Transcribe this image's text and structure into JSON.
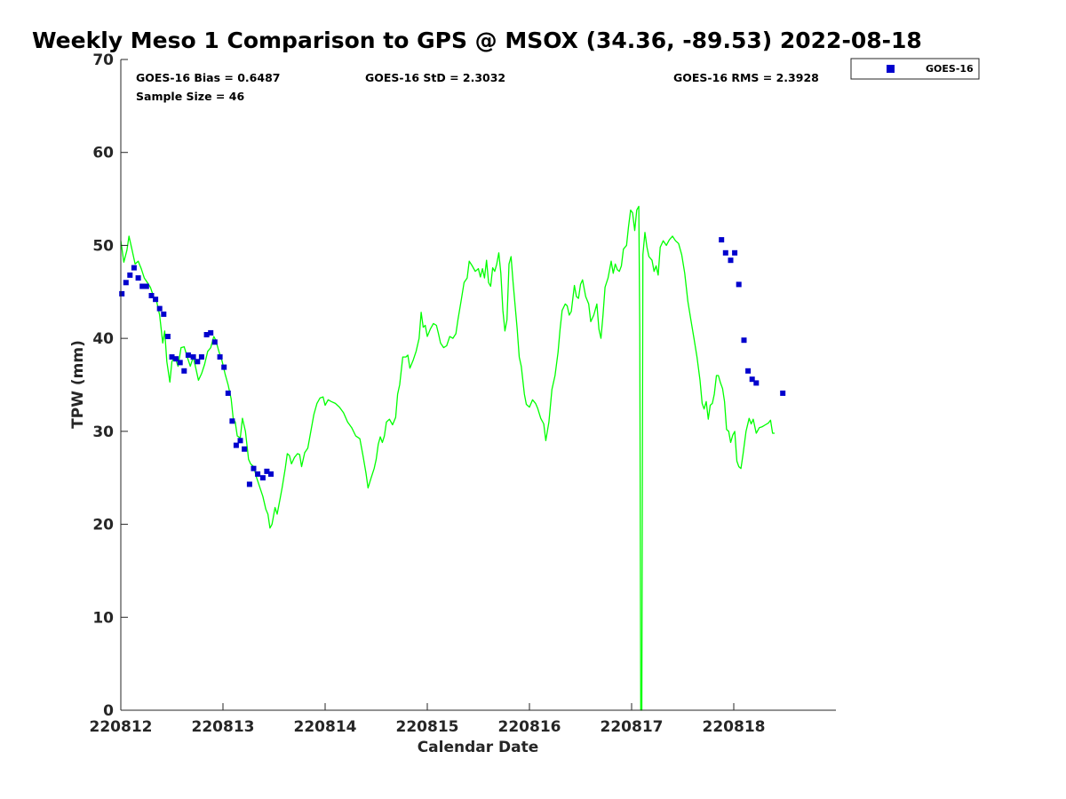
{
  "chart_data": {
    "type": "scatter",
    "title": "Weekly Meso 1 Comparison to GPS @ MSOX (34.36, -89.53) 2022-08-18",
    "xlabel": "Calendar Date",
    "ylabel": "TPW (mm)",
    "xlim": [
      0,
      7
    ],
    "ylim": [
      0,
      70
    ],
    "xticks": [
      0,
      1,
      2,
      3,
      4,
      5,
      6
    ],
    "categories": [
      "220812",
      "220813",
      "220814",
      "220815",
      "220816",
      "220817",
      "220818"
    ],
    "yticks": [
      0,
      10,
      20,
      30,
      40,
      50,
      60,
      70
    ],
    "grid": false,
    "legend": {
      "position": "outside-top-right"
    },
    "stats": {
      "bias": "GOES-16 Bias = 0.6487",
      "std": "GOES-16 StD = 2.3032",
      "rms": "GOES-16 RMS = 2.3928",
      "sample": "Sample Size = 46"
    },
    "series": [
      {
        "name": "GOES-16",
        "kind": "markers",
        "color": "#0000cd",
        "points": [
          [
            0.01,
            44.8
          ],
          [
            0.05,
            46
          ],
          [
            0.09,
            46.8
          ],
          [
            0.13,
            47.6
          ],
          [
            0.17,
            46.5
          ],
          [
            0.21,
            45.6
          ],
          [
            0.25,
            45.6
          ],
          [
            0.3,
            44.6
          ],
          [
            0.34,
            44.2
          ],
          [
            0.38,
            43.2
          ],
          [
            0.42,
            42.6
          ],
          [
            0.46,
            40.2
          ],
          [
            0.5,
            38
          ],
          [
            0.54,
            37.8
          ],
          [
            0.58,
            37.4
          ],
          [
            0.62,
            36.5
          ],
          [
            0.66,
            38.2
          ],
          [
            0.71,
            38
          ],
          [
            0.75,
            37.5
          ],
          [
            0.79,
            38
          ],
          [
            0.84,
            40.4
          ],
          [
            0.88,
            40.6
          ],
          [
            0.92,
            39.6
          ],
          [
            0.97,
            38
          ],
          [
            1.01,
            36.9
          ],
          [
            1.05,
            34.1
          ],
          [
            1.09,
            31.1
          ],
          [
            1.13,
            28.5
          ],
          [
            1.17,
            29
          ],
          [
            1.21,
            28.1
          ],
          [
            1.26,
            24.3
          ],
          [
            1.3,
            26
          ],
          [
            1.34,
            25.4
          ],
          [
            1.39,
            25
          ],
          [
            1.43,
            25.7
          ],
          [
            1.47,
            25.4
          ],
          [
            5.88,
            50.6
          ],
          [
            5.92,
            49.2
          ],
          [
            5.97,
            48.4
          ],
          [
            6.01,
            49.2
          ],
          [
            6.05,
            45.8
          ],
          [
            6.1,
            39.8
          ],
          [
            6.14,
            36.5
          ],
          [
            6.18,
            35.6
          ],
          [
            6.22,
            35.2
          ],
          [
            6.48,
            34.1
          ]
        ]
      },
      {
        "name": "GPS",
        "kind": "line",
        "color": "#00ff00",
        "points": [
          [
            0.0,
            50.5
          ],
          [
            0.03,
            48.2
          ],
          [
            0.06,
            49.5
          ],
          [
            0.08,
            51
          ],
          [
            0.11,
            49.5
          ],
          [
            0.14,
            48
          ],
          [
            0.17,
            48.3
          ],
          [
            0.2,
            47.5
          ],
          [
            0.23,
            46.5
          ],
          [
            0.26,
            46
          ],
          [
            0.29,
            45.5
          ],
          [
            0.32,
            44.5
          ],
          [
            0.35,
            44
          ],
          [
            0.38,
            42.5
          ],
          [
            0.41,
            39.5
          ],
          [
            0.43,
            40.8
          ],
          [
            0.45,
            37.5
          ],
          [
            0.48,
            35.3
          ],
          [
            0.5,
            37.5
          ],
          [
            0.53,
            38
          ],
          [
            0.56,
            37
          ],
          [
            0.59,
            39
          ],
          [
            0.62,
            39.1
          ],
          [
            0.65,
            38
          ],
          [
            0.68,
            37
          ],
          [
            0.71,
            38
          ],
          [
            0.74,
            36.5
          ],
          [
            0.76,
            35.5
          ],
          [
            0.79,
            36.2
          ],
          [
            0.82,
            37.2
          ],
          [
            0.85,
            38.6
          ],
          [
            0.88,
            39
          ],
          [
            0.91,
            40.2
          ],
          [
            0.93,
            39.8
          ],
          [
            0.96,
            38.6
          ],
          [
            0.99,
            37.6
          ],
          [
            1.02,
            36.2
          ],
          [
            1.05,
            35
          ],
          [
            1.08,
            33.5
          ],
          [
            1.1,
            31.4
          ],
          [
            1.12,
            31
          ],
          [
            1.14,
            29.5
          ],
          [
            1.17,
            29.3
          ],
          [
            1.19,
            31.4
          ],
          [
            1.22,
            30
          ],
          [
            1.25,
            27
          ],
          [
            1.27,
            26.5
          ],
          [
            1.3,
            26.2
          ],
          [
            1.33,
            25
          ],
          [
            1.36,
            24
          ],
          [
            1.39,
            23
          ],
          [
            1.42,
            21.6
          ],
          [
            1.44,
            21.1
          ],
          [
            1.46,
            19.6
          ],
          [
            1.48,
            20
          ],
          [
            1.51,
            21.8
          ],
          [
            1.53,
            21.1
          ],
          [
            1.56,
            22.8
          ],
          [
            1.58,
            24
          ],
          [
            1.61,
            26
          ],
          [
            1.63,
            27.6
          ],
          [
            1.65,
            27.4
          ],
          [
            1.67,
            26.5
          ],
          [
            1.7,
            27.2
          ],
          [
            1.73,
            27.6
          ],
          [
            1.75,
            27.5
          ],
          [
            1.77,
            26.2
          ],
          [
            1.8,
            27.7
          ],
          [
            1.83,
            28.2
          ],
          [
            1.86,
            30
          ],
          [
            1.89,
            31.8
          ],
          [
            1.92,
            33
          ],
          [
            1.95,
            33.6
          ],
          [
            1.98,
            33.7
          ],
          [
            2.0,
            32.8
          ],
          [
            2.03,
            33.4
          ],
          [
            2.06,
            33.2
          ],
          [
            2.1,
            33
          ],
          [
            2.14,
            32.6
          ],
          [
            2.18,
            32
          ],
          [
            2.22,
            31
          ],
          [
            2.26,
            30.4
          ],
          [
            2.3,
            29.5
          ],
          [
            2.34,
            29.2
          ],
          [
            2.37,
            27.4
          ],
          [
            2.4,
            25.5
          ],
          [
            2.42,
            23.9
          ],
          [
            2.45,
            25
          ],
          [
            2.48,
            26
          ],
          [
            2.5,
            27
          ],
          [
            2.52,
            28.6
          ],
          [
            2.54,
            29.4
          ],
          [
            2.56,
            28.8
          ],
          [
            2.58,
            29.5
          ],
          [
            2.6,
            31
          ],
          [
            2.63,
            31.3
          ],
          [
            2.66,
            30.7
          ],
          [
            2.69,
            31.5
          ],
          [
            2.71,
            34
          ],
          [
            2.73,
            35
          ],
          [
            2.76,
            38
          ],
          [
            2.79,
            38
          ],
          [
            2.81,
            38.2
          ],
          [
            2.83,
            36.8
          ],
          [
            2.86,
            37.6
          ],
          [
            2.89,
            38.6
          ],
          [
            2.92,
            40
          ],
          [
            2.94,
            42.8
          ],
          [
            2.96,
            41.2
          ],
          [
            2.98,
            41.4
          ],
          [
            3.0,
            40.2
          ],
          [
            3.03,
            41
          ],
          [
            3.06,
            41.6
          ],
          [
            3.09,
            41.4
          ],
          [
            3.11,
            40.5
          ],
          [
            3.13,
            39.5
          ],
          [
            3.16,
            39
          ],
          [
            3.19,
            39.2
          ],
          [
            3.22,
            40.2
          ],
          [
            3.25,
            40
          ],
          [
            3.28,
            40.5
          ],
          [
            3.3,
            42
          ],
          [
            3.33,
            44
          ],
          [
            3.36,
            46
          ],
          [
            3.39,
            46.5
          ],
          [
            3.41,
            48.3
          ],
          [
            3.44,
            47.8
          ],
          [
            3.47,
            47.2
          ],
          [
            3.5,
            47.5
          ],
          [
            3.52,
            46.6
          ],
          [
            3.54,
            47.5
          ],
          [
            3.56,
            46.5
          ],
          [
            3.58,
            48.4
          ],
          [
            3.6,
            46
          ],
          [
            3.62,
            45.6
          ],
          [
            3.64,
            47.6
          ],
          [
            3.66,
            47.2
          ],
          [
            3.68,
            48
          ],
          [
            3.7,
            49.2
          ],
          [
            3.72,
            47
          ],
          [
            3.74,
            43
          ],
          [
            3.76,
            40.8
          ],
          [
            3.78,
            42
          ],
          [
            3.8,
            48
          ],
          [
            3.82,
            48.8
          ],
          [
            3.84,
            46
          ],
          [
            3.86,
            43.5
          ],
          [
            3.88,
            41
          ],
          [
            3.9,
            38
          ],
          [
            3.92,
            37
          ],
          [
            3.95,
            34
          ],
          [
            3.97,
            32.9
          ],
          [
            4.0,
            32.6
          ],
          [
            4.03,
            33.4
          ],
          [
            4.06,
            33
          ],
          [
            4.08,
            32.5
          ],
          [
            4.11,
            31.4
          ],
          [
            4.14,
            30.8
          ],
          [
            4.16,
            29
          ],
          [
            4.19,
            31
          ],
          [
            4.22,
            34.5
          ],
          [
            4.25,
            36
          ],
          [
            4.28,
            38.5
          ],
          [
            4.3,
            41
          ],
          [
            4.32,
            43
          ],
          [
            4.35,
            43.7
          ],
          [
            4.37,
            43.5
          ],
          [
            4.39,
            42.5
          ],
          [
            4.41,
            42.9
          ],
          [
            4.44,
            45.7
          ],
          [
            4.46,
            44.5
          ],
          [
            4.48,
            44.3
          ],
          [
            4.5,
            45.8
          ],
          [
            4.52,
            46.3
          ],
          [
            4.55,
            44.5
          ],
          [
            4.58,
            43.7
          ],
          [
            4.6,
            41.8
          ],
          [
            4.63,
            42.5
          ],
          [
            4.66,
            43.7
          ],
          [
            4.68,
            41
          ],
          [
            4.7,
            40
          ],
          [
            4.72,
            42.5
          ],
          [
            4.74,
            45.5
          ],
          [
            4.77,
            46.5
          ],
          [
            4.8,
            48.3
          ],
          [
            4.82,
            47
          ],
          [
            4.84,
            48
          ],
          [
            4.86,
            47.4
          ],
          [
            4.88,
            47.2
          ],
          [
            4.9,
            47.8
          ],
          [
            4.92,
            49.6
          ],
          [
            4.95,
            50
          ],
          [
            4.97,
            52
          ],
          [
            4.99,
            53.8
          ],
          [
            5.01,
            53.5
          ],
          [
            5.03,
            51.6
          ],
          [
            5.05,
            53.8
          ],
          [
            5.07,
            54.2
          ],
          [
            5.08,
            41
          ],
          [
            5.09,
            0
          ],
          [
            5.1,
            0
          ],
          [
            5.11,
            49
          ],
          [
            5.13,
            51.4
          ],
          [
            5.15,
            49.8
          ],
          [
            5.17,
            48.8
          ],
          [
            5.2,
            48.4
          ],
          [
            5.22,
            47.2
          ],
          [
            5.24,
            47.8
          ],
          [
            5.26,
            46.8
          ],
          [
            5.28,
            49.8
          ],
          [
            5.31,
            50.5
          ],
          [
            5.34,
            50
          ],
          [
            5.37,
            50.6
          ],
          [
            5.4,
            51
          ],
          [
            5.43,
            50.5
          ],
          [
            5.46,
            50.2
          ],
          [
            5.49,
            49
          ],
          [
            5.52,
            47
          ],
          [
            5.55,
            44
          ],
          [
            5.58,
            42
          ],
          [
            5.61,
            40
          ],
          [
            5.64,
            38
          ],
          [
            5.67,
            35.5
          ],
          [
            5.69,
            33
          ],
          [
            5.71,
            32.4
          ],
          [
            5.73,
            33.2
          ],
          [
            5.75,
            31.3
          ],
          [
            5.77,
            32.8
          ],
          [
            5.79,
            33
          ],
          [
            5.81,
            34
          ],
          [
            5.83,
            36
          ],
          [
            5.85,
            36
          ],
          [
            5.87,
            35.2
          ],
          [
            5.89,
            34.6
          ],
          [
            5.91,
            33.2
          ],
          [
            5.93,
            30.2
          ],
          [
            5.95,
            30
          ],
          [
            5.97,
            28.8
          ],
          [
            5.99,
            29.6
          ],
          [
            6.01,
            30
          ],
          [
            6.03,
            26.8
          ],
          [
            6.05,
            26.2
          ],
          [
            6.07,
            26
          ],
          [
            6.09,
            27.5
          ],
          [
            6.12,
            30
          ],
          [
            6.15,
            31.4
          ],
          [
            6.17,
            30.8
          ],
          [
            6.19,
            31.3
          ],
          [
            6.22,
            29.8
          ],
          [
            6.25,
            30.4
          ],
          [
            6.28,
            30.5
          ],
          [
            6.31,
            30.7
          ],
          [
            6.34,
            30.9
          ],
          [
            6.36,
            31.2
          ],
          [
            6.38,
            29.8
          ],
          [
            6.4,
            29.8
          ]
        ]
      }
    ]
  }
}
